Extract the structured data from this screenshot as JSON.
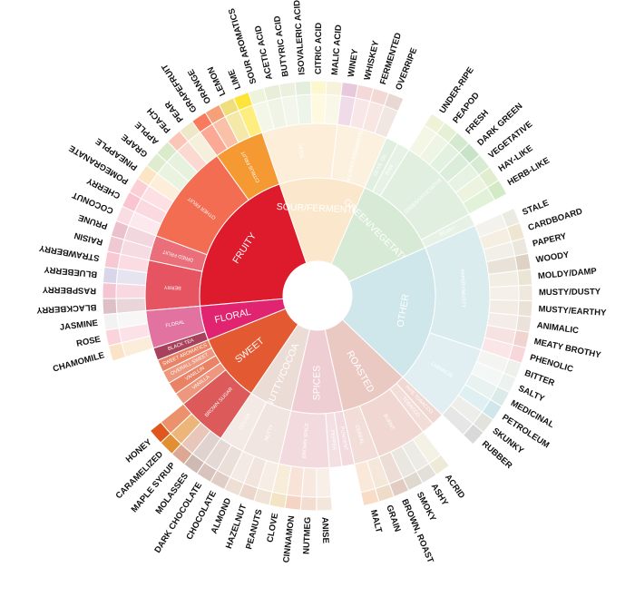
{
  "chart_data": {
    "type": "sunburst",
    "title": "",
    "colors": {
      "FRUITY": "#de1b2c",
      "FLORAL": "#e0246f",
      "SWEET": "#e35a32",
      "NUTTY/COCOA": "#ecdcd6",
      "SPICES": "#eecdd3",
      "ROASTED": "#ebc9c3",
      "OTHER": "#cfe6ea",
      "GREEN/VEGETATIVE": "#d7ead6",
      "SOUR/FERMENTED": "#fbe8cc"
    },
    "categories": [
      {
        "name": "FRUITY",
        "children": [
          {
            "name": "BERRY",
            "children": [
              "BLACKBERRY",
              "RASPBERRY",
              "BLUEBERRY",
              "STRAWBERRY"
            ]
          },
          {
            "name": "DRIED FRUIT",
            "children": [
              "RAISIN",
              "PRUNE"
            ]
          },
          {
            "name": "OTHER FRUIT",
            "children": [
              "COCONUT",
              "CHERRY",
              "POMEGRANATE",
              "PINEAPPLE",
              "GRAPE",
              "APPLE",
              "PEACH",
              "PEAR"
            ]
          },
          {
            "name": "CITRUS FRUIT",
            "children": [
              "GRAPEFRUIT",
              "ORANGE",
              "LEMON",
              "LIME"
            ]
          }
        ]
      },
      {
        "name": "SOUR/FERMENTED",
        "children": [
          {
            "name": "SOUR",
            "children": [
              "SOUR AROMATICS",
              "ACETIC ACID",
              "BUTYRIC ACID",
              "ISOVALERIC ACID",
              "CITRIC ACID",
              "MALIC ACID"
            ]
          },
          {
            "name": "ALCOHOL/FERMENTED",
            "children": [
              "WINEY",
              "WHISKEY",
              "FERMENTED",
              "OVERRIPE"
            ]
          }
        ]
      },
      {
        "name": "GREEN/VEGETATIVE",
        "children": [
          {
            "name": "OLIVE OIL",
            "children": []
          },
          {
            "name": "RAW",
            "children": []
          },
          {
            "name": "GREEN/VEGETATIVE",
            "children": [
              "UNDER-RIPE",
              "PEAPOD",
              "FRESH",
              "DARK GREEN",
              "VEGETATIVE",
              "HAY-LIKE",
              "HERB-LIKE"
            ]
          },
          {
            "name": "BEANY",
            "children": []
          }
        ]
      },
      {
        "name": "OTHER",
        "children": [
          {
            "name": "PAPERY/MUSTY",
            "children": [
              "STALE",
              "CARDBOARD",
              "PAPERY",
              "WOODY",
              "MOLDY/DAMP",
              "MUSTY/DUSTY",
              "MUSTY/EARTHY",
              "ANIMALIC",
              "MEATY BROTHY",
              "PHENOLIC"
            ]
          },
          {
            "name": "CHEMICAL",
            "children": [
              "BITTER",
              "SALTY",
              "MEDICINAL",
              "PETROLEUM",
              "SKUNKY",
              "RUBBER"
            ]
          }
        ]
      },
      {
        "name": "ROASTED",
        "children": [
          {
            "name": "PIPE TOBACCO",
            "children": []
          },
          {
            "name": "TOBACCO",
            "children": []
          },
          {
            "name": "BURNT",
            "children": [
              "ACRID",
              "ASHY",
              "SMOKY",
              "BROWN, ROAST"
            ]
          },
          {
            "name": "CEREAL",
            "children": [
              "GRAIN",
              "MALT"
            ]
          }
        ]
      },
      {
        "name": "SPICES",
        "children": [
          {
            "name": "PUNGENT",
            "children": []
          },
          {
            "name": "PEPPER",
            "children": []
          },
          {
            "name": "BROWN SPICE",
            "children": [
              "ANISE",
              "NUTMEG",
              "CINNAMON",
              "CLOVE"
            ]
          }
        ]
      },
      {
        "name": "NUTTY/COCOA",
        "children": [
          {
            "name": "NUTTY",
            "children": [
              "PEANUTS",
              "HAZELNUT",
              "ALMOND"
            ]
          },
          {
            "name": "COCOA",
            "children": [
              "CHOCOLATE",
              "DARK CHOCOLATE"
            ]
          }
        ]
      },
      {
        "name": "SWEET",
        "children": [
          {
            "name": "BROWN SUGAR",
            "children": [
              "MOLASSES",
              "MAPLE SYRUP",
              "CARAMELIZED",
              "HONEY"
            ]
          },
          {
            "name": "VANILLA",
            "children": []
          },
          {
            "name": "VANILLIN",
            "children": []
          },
          {
            "name": "OVERALL SWEET",
            "children": []
          },
          {
            "name": "SWEET AROMATICS",
            "children": []
          }
        ]
      },
      {
        "name": "FLORAL",
        "children": [
          {
            "name": "BLACK TEA",
            "children": []
          },
          {
            "name": "FLORAL",
            "children": [
              "CHAMOMILE",
              "ROSE",
              "JASMINE"
            ]
          }
        ]
      }
    ]
  }
}
